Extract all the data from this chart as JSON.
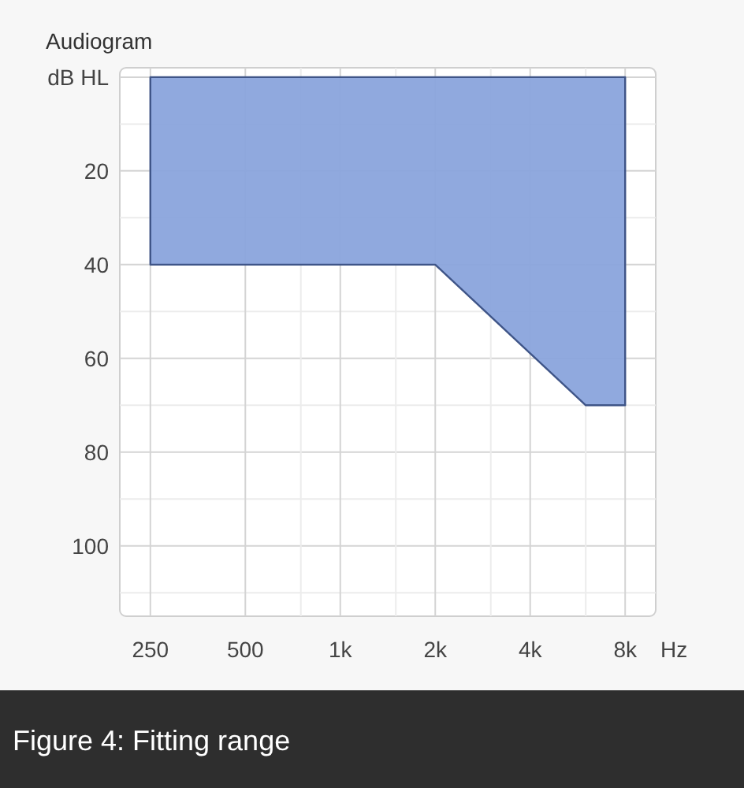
{
  "chart_data": {
    "type": "area",
    "title": "Audiogram",
    "xlabel": "Hz",
    "annotations": [
      "Figure 4: Fitting range"
    ],
    "log": "x",
    "xlim": [
      200,
      10000
    ],
    "ylim": [
      115,
      -2
    ],
    "xticks": [
      250,
      500,
      {
        "value": 750,
        "label": null
      },
      {
        "value": 1000,
        "label": "1k"
      },
      {
        "value": 1500,
        "label": null
      },
      {
        "value": 2000,
        "label": "2k"
      },
      {
        "value": 3000,
        "label": null
      },
      {
        "value": 4000,
        "label": "4k"
      },
      {
        "value": 6000,
        "label": null
      },
      {
        "value": 8000,
        "label": "8k"
      }
    ],
    "yticks": [
      {
        "value": 0,
        "label": "dB HL"
      },
      {
        "value": 10,
        "label": null
      },
      20,
      {
        "value": 30,
        "label": null
      },
      40,
      {
        "value": 50,
        "label": null
      },
      60,
      {
        "value": 70,
        "label": null
      },
      80,
      {
        "value": 90,
        "label": null
      },
      100,
      {
        "value": 110,
        "label": null
      }
    ],
    "grid": true,
    "series": [
      {
        "color": "#8aa4dc",
        "x": [
          250,
          2000,
          6000,
          8000
        ],
        "values": [
          40,
          40,
          70,
          70
        ]
      }
    ]
  }
}
